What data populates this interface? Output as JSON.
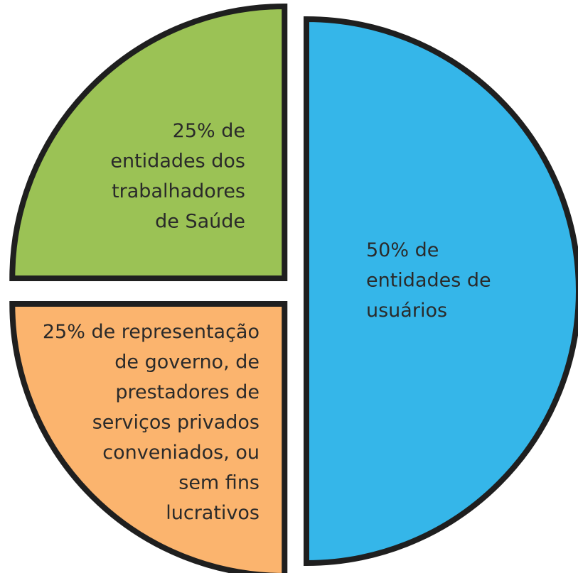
{
  "chart_data": {
    "type": "pie",
    "values": [
      50,
      25,
      25
    ],
    "value_labels": [
      "50%",
      "25%",
      "25%"
    ],
    "categories": [
      [
        "de",
        "entidades de",
        "usuários"
      ],
      [
        "de representação",
        "de governo, de",
        "prestadores de",
        "serviços privados",
        "conveniados, ou",
        "sem fins",
        "lucrativos"
      ],
      [
        "de",
        "entidades dos",
        "trabalhadores",
        "de Saúde"
      ]
    ],
    "colors": [
      "#35b6e9",
      "#fbb46e",
      "#9bc255"
    ]
  }
}
